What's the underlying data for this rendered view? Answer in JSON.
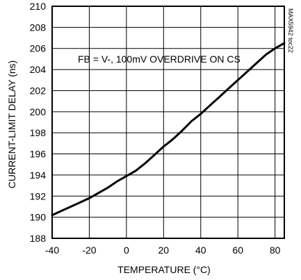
{
  "chart_data": {
    "type": "line",
    "xlabel": "TEMPERATURE (°C)",
    "ylabel": "CURRENT-LIMIT DELAY (ns)",
    "xlim": [
      -40,
      85
    ],
    "ylim": [
      188,
      210
    ],
    "xticks": [
      -40,
      -20,
      0,
      20,
      40,
      60,
      80
    ],
    "yticks": [
      188,
      190,
      192,
      194,
      196,
      198,
      200,
      202,
      204,
      206,
      208,
      210
    ],
    "grid": true,
    "annotation": "FB = V-, 100mV OVERDRIVE ON CS",
    "figure_id": "MAX5942 toc22",
    "series": [
      {
        "x": [
          -40,
          -35,
          -30,
          -25,
          -20,
          -15,
          -10,
          -5,
          0,
          5,
          10,
          15,
          20,
          25,
          30,
          35,
          40,
          45,
          50,
          55,
          60,
          65,
          70,
          75,
          80,
          85
        ],
        "y": [
          190.2,
          190.6,
          191.0,
          191.4,
          191.8,
          192.3,
          192.8,
          193.4,
          193.9,
          194.4,
          195.1,
          195.9,
          196.7,
          197.4,
          198.2,
          199.1,
          199.8,
          200.6,
          201.4,
          202.2,
          203.0,
          203.8,
          204.6,
          205.4,
          206.0,
          206.5
        ]
      }
    ]
  }
}
